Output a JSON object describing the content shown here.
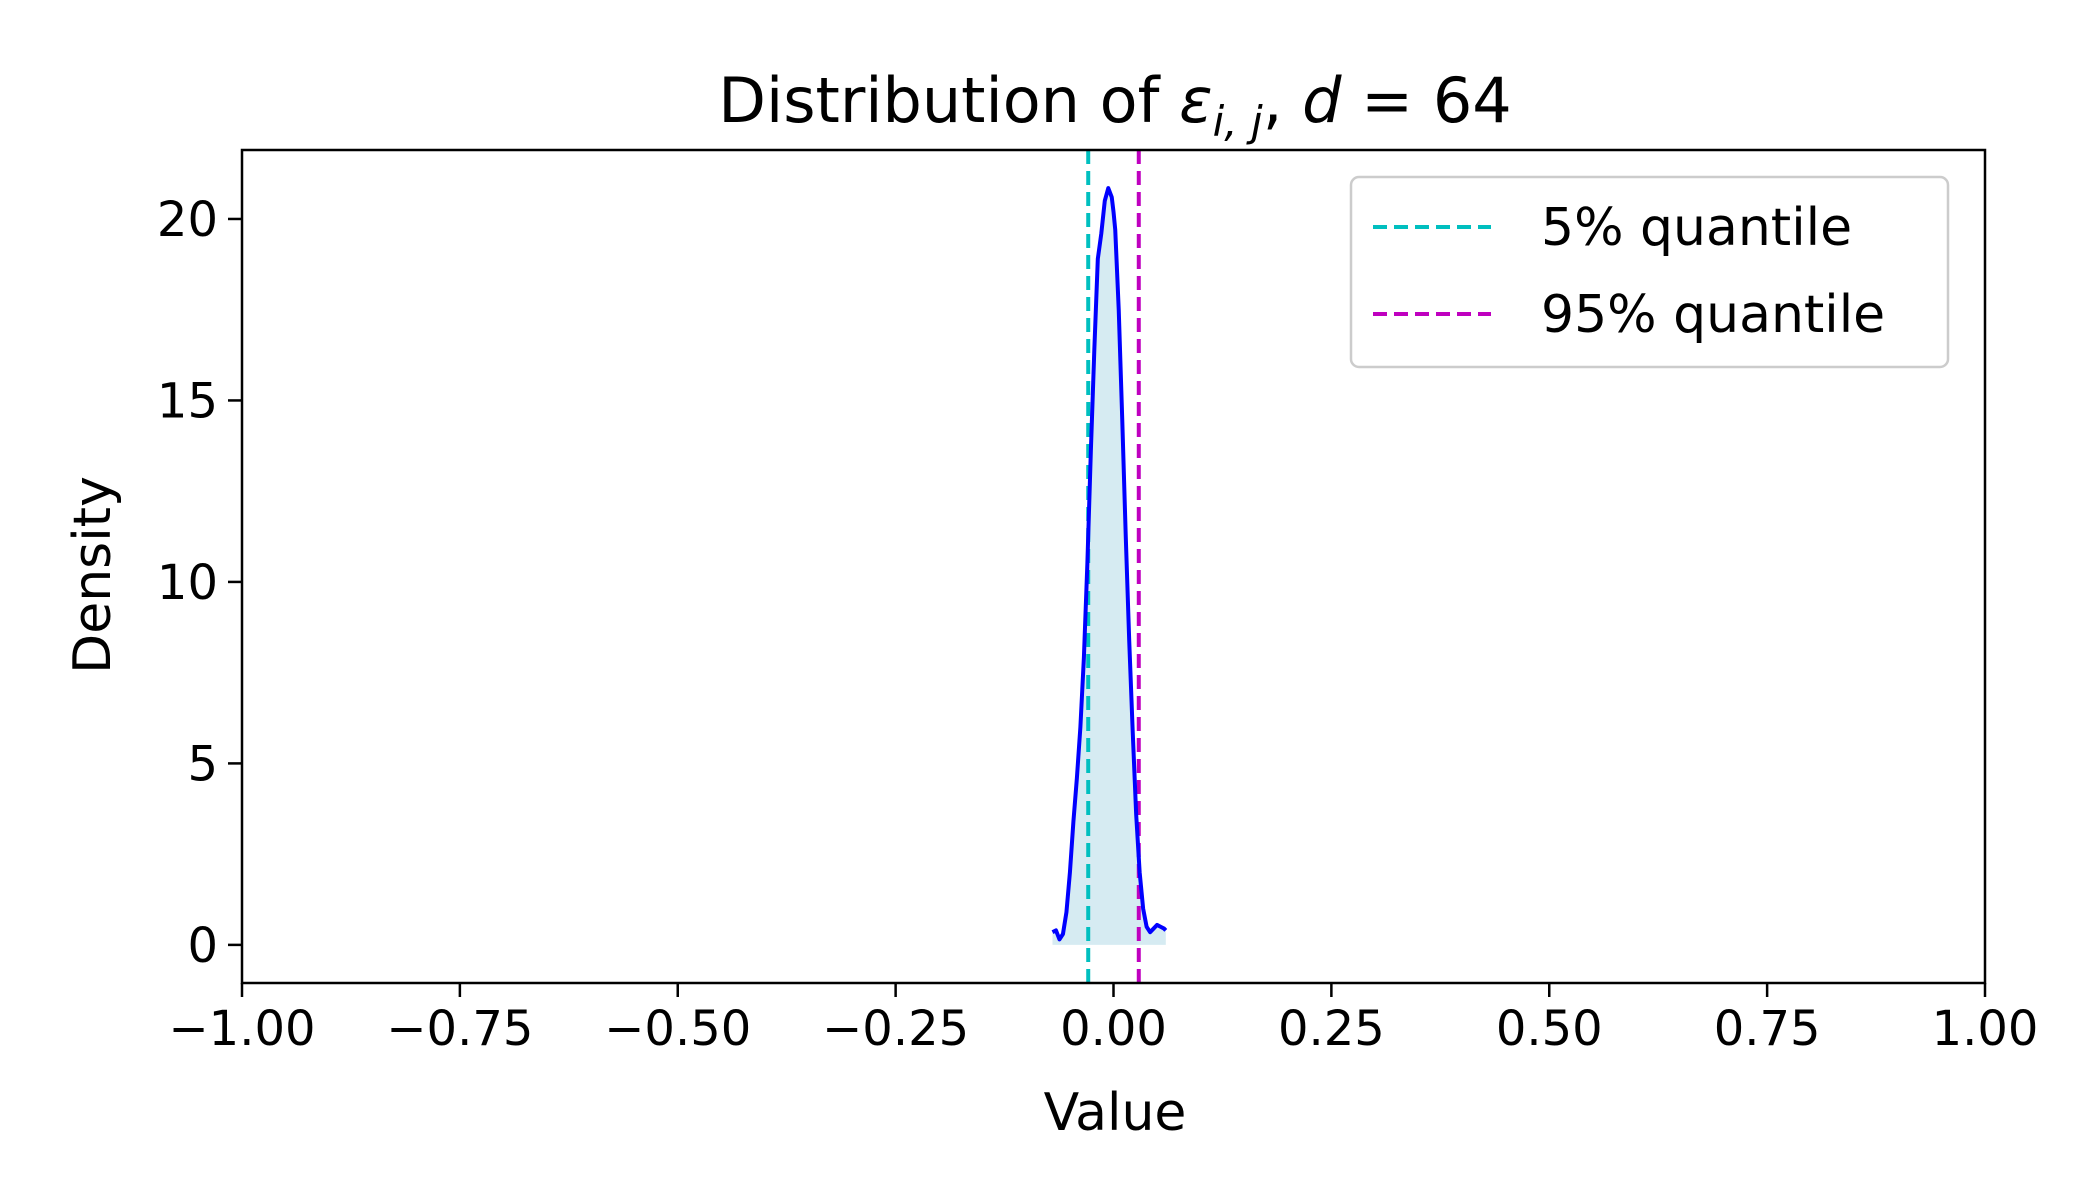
{
  "chart_data": {
    "type": "line",
    "title": {
      "prefix": "Distribution of ",
      "epsilon": "ε",
      "subscript": "i, j",
      "separator": ", ",
      "d_symbol": "d",
      "equals": " = ",
      "d_value": "64"
    },
    "xlabel": "Value",
    "ylabel": "Density",
    "xlim": [
      -1.0,
      1.0
    ],
    "ylim": [
      -1.05,
      21.9
    ],
    "xticks": [
      -1.0,
      -0.75,
      -0.5,
      -0.25,
      0.0,
      0.25,
      0.5,
      0.75,
      1.0
    ],
    "xtick_labels": [
      "−1.00",
      "−0.75",
      "−0.50",
      "−0.25",
      "0.00",
      "0.25",
      "0.50",
      "0.75",
      "1.00"
    ],
    "yticks": [
      0,
      5,
      10,
      15,
      20
    ],
    "ytick_labels": [
      "0",
      "5",
      "10",
      "15",
      "20"
    ],
    "grid": false,
    "legend_position": "top-right",
    "series": [
      {
        "kind": "density",
        "color": "#0000ff",
        "fill_color": "#add8e6",
        "x": [
          -0.07,
          -0.066,
          -0.062,
          -0.058,
          -0.054,
          -0.05,
          -0.046,
          -0.042,
          -0.038,
          -0.034,
          -0.03,
          -0.026,
          -0.022,
          -0.018,
          -0.014,
          -0.01,
          -0.006,
          -0.002,
          0.0,
          0.002,
          0.006,
          0.01,
          0.014,
          0.018,
          0.022,
          0.026,
          0.03,
          0.034,
          0.038,
          0.042,
          0.046,
          0.05,
          0.054,
          0.058,
          0.06
        ],
        "y": [
          0.35,
          0.4,
          0.15,
          0.3,
          0.9,
          2.0,
          3.4,
          4.6,
          6.0,
          7.9,
          10.5,
          13.6,
          16.4,
          18.9,
          19.6,
          20.5,
          20.85,
          20.6,
          20.2,
          19.7,
          17.5,
          14.5,
          11.3,
          8.4,
          5.9,
          3.6,
          2.0,
          1.0,
          0.5,
          0.35,
          0.45,
          0.55,
          0.5,
          0.45,
          0.4
        ]
      },
      {
        "kind": "vline",
        "name": "5% quantile",
        "x": -0.029,
        "color": "#00bfbf"
      },
      {
        "kind": "vline",
        "name": "95% quantile",
        "x": 0.029,
        "color": "#bf00bf"
      }
    ]
  }
}
